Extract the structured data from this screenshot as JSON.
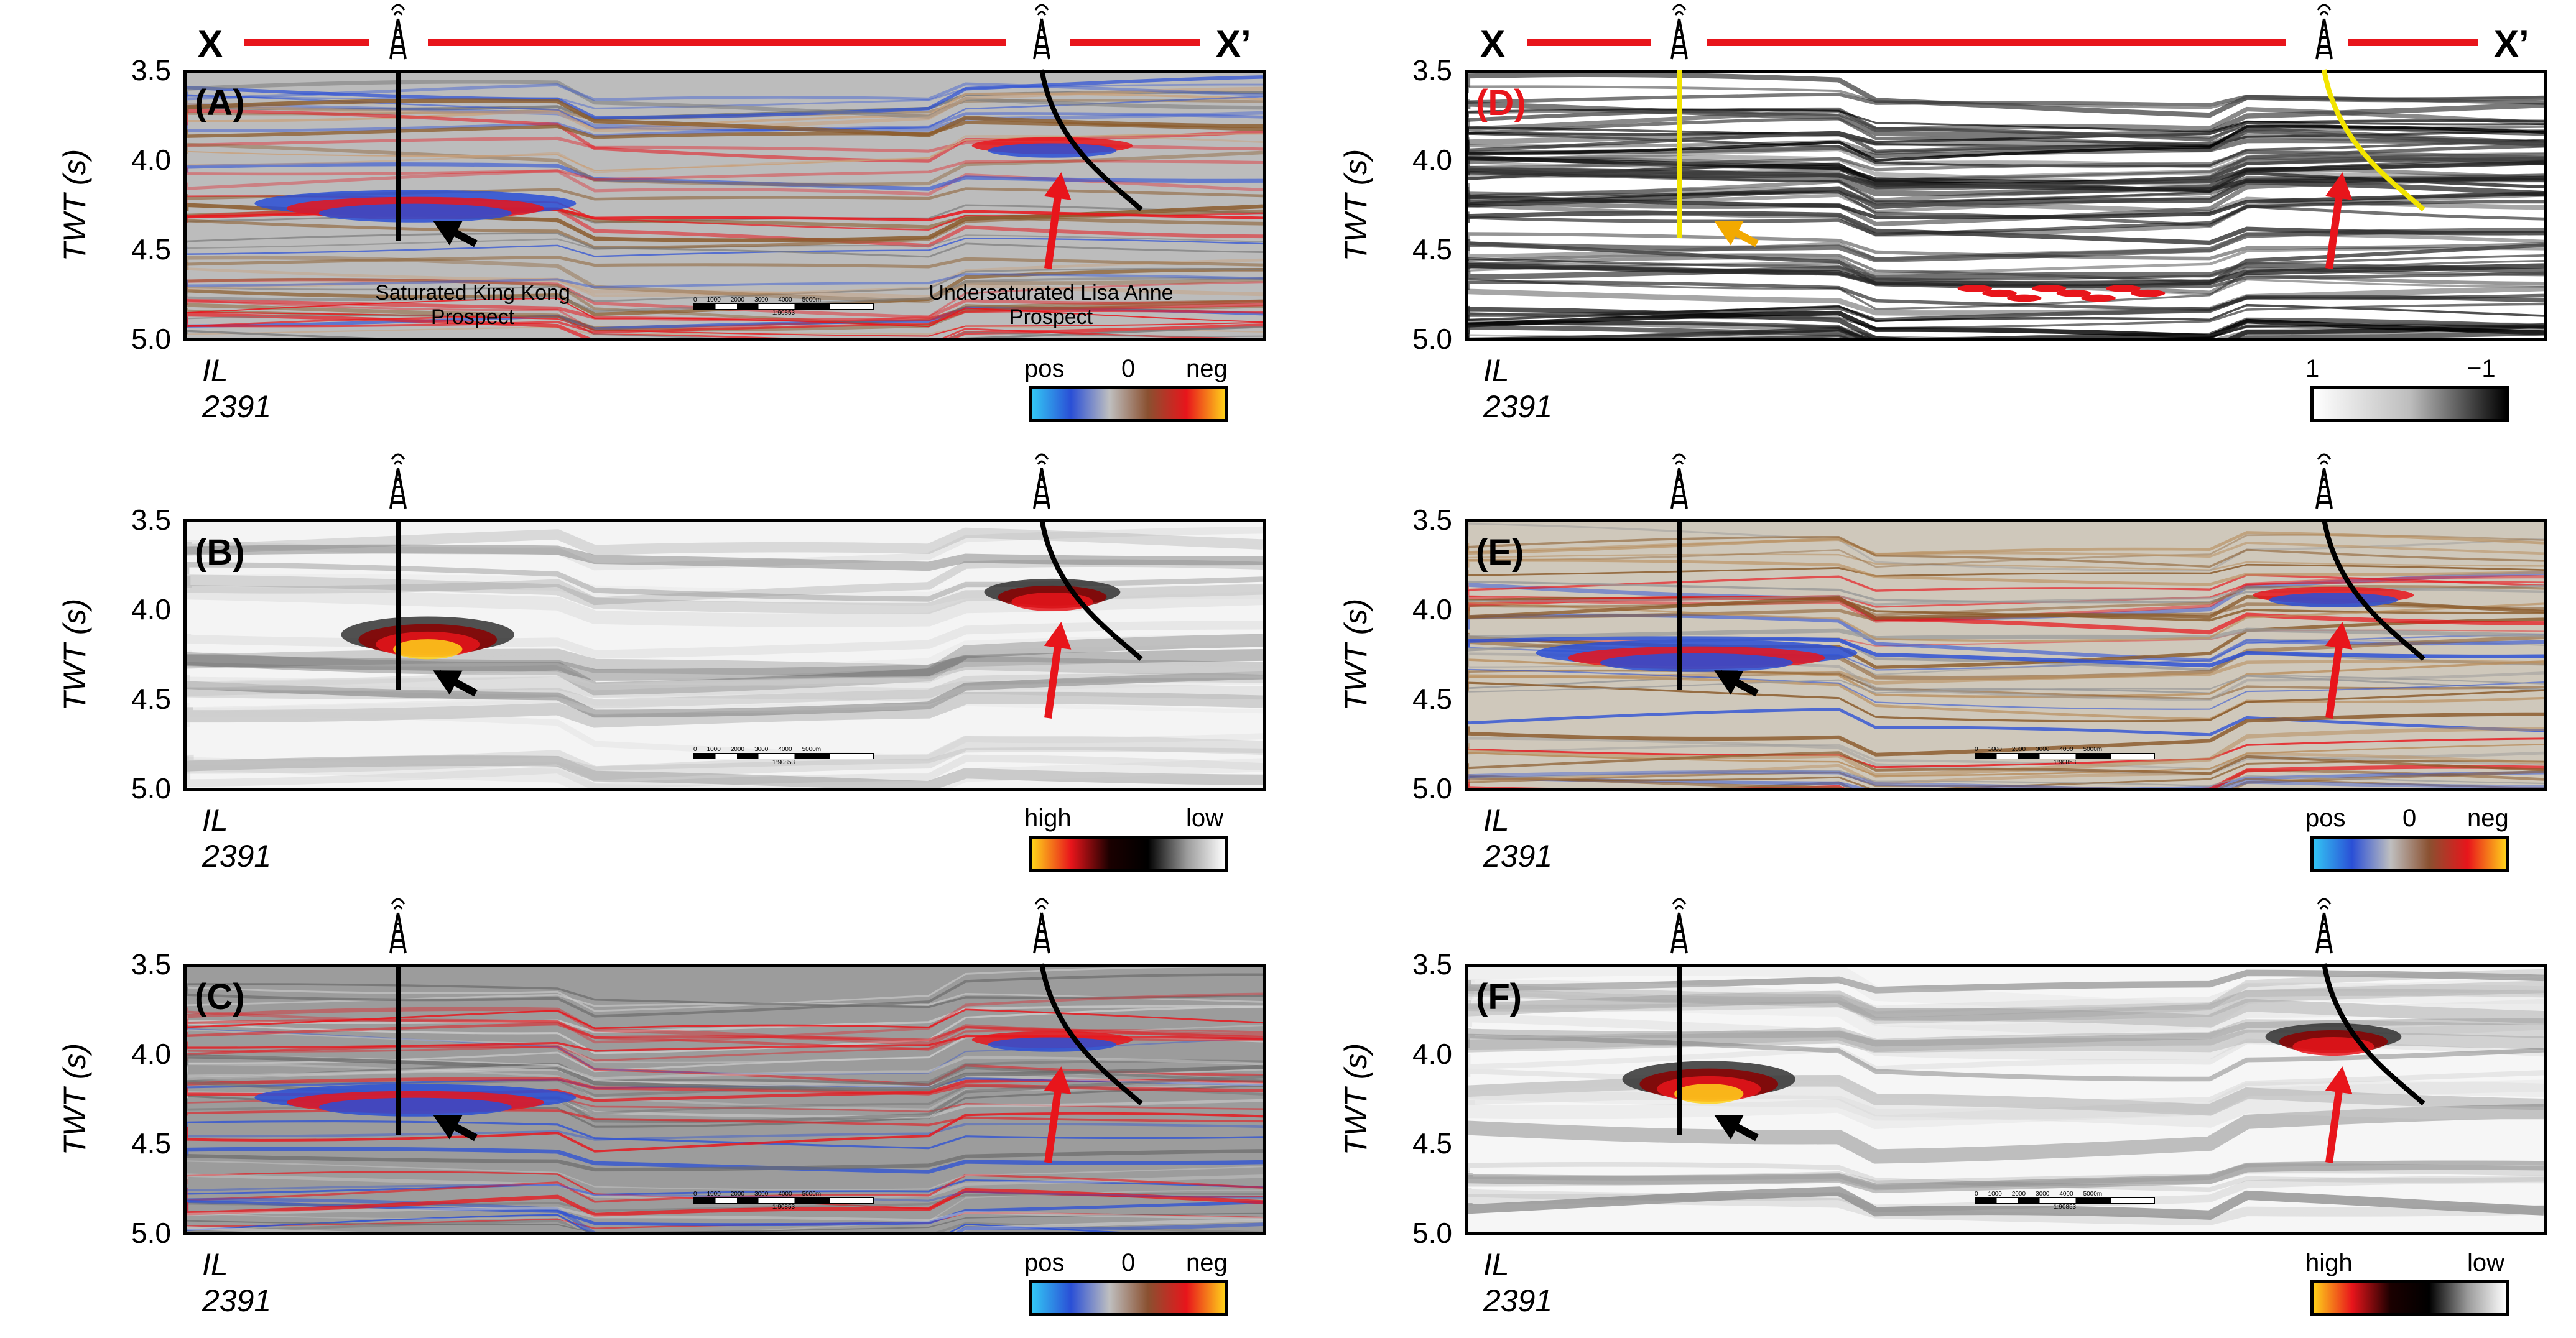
{
  "section_header": {
    "left_label": "X",
    "right_label": "X’"
  },
  "y_axis": {
    "label": "TWT (s)",
    "ticks": [
      "3.5",
      "4.0",
      "4.5",
      "5.0"
    ]
  },
  "panels": [
    {
      "id": "A",
      "label": "(A)",
      "line": "IL 2391",
      "colorbar": {
        "left": "pos",
        "mid": "0",
        "right": "neg",
        "colors": [
          "#33c6f4",
          "#2a4fd6",
          "#bfbfbf",
          "#8a5030",
          "#e8151b",
          "#ffd21a"
        ]
      }
    },
    {
      "id": "B",
      "label": "(B)",
      "line": "IL 2391",
      "colorbar": {
        "left": "high",
        "mid": "",
        "right": "low",
        "colors": [
          "#ffd21a",
          "#e8151b",
          "#1a0000",
          "#000000",
          "#9a9a9a",
          "#ffffff"
        ]
      }
    },
    {
      "id": "C",
      "label": "(C)",
      "line": "IL 2391",
      "colorbar": {
        "left": "pos",
        "mid": "0",
        "right": "neg",
        "colors": [
          "#33c6f4",
          "#2a4fd6",
          "#bfbfbf",
          "#8a5030",
          "#e8151b",
          "#ffd21a"
        ]
      }
    },
    {
      "id": "D",
      "label": "(D)",
      "line": "IL 2391",
      "colorbar": {
        "left": "1",
        "mid": "",
        "right": "−1",
        "colors": [
          "#ffffff",
          "#bdbdbd",
          "#000000"
        ]
      }
    },
    {
      "id": "E",
      "label": "(E)",
      "line": "IL 2391",
      "colorbar": {
        "left": "pos",
        "mid": "0",
        "right": "neg",
        "colors": [
          "#33c6f4",
          "#2a4fd6",
          "#bfbfbf",
          "#8a5030",
          "#e8151b",
          "#ffd21a"
        ]
      }
    },
    {
      "id": "F",
      "label": "(F)",
      "line": "IL 2391",
      "colorbar": {
        "left": "high",
        "mid": "",
        "right": "low",
        "colors": [
          "#ffd21a",
          "#e8151b",
          "#1a0000",
          "#000000",
          "#9a9a9a",
          "#ffffff"
        ]
      }
    }
  ],
  "annotations": {
    "king_kong": "Saturated King Kong\nProspect",
    "lisa_anne": "Undersaturated Lisa Anne\nProspect"
  },
  "scale_bar": {
    "ticks": [
      "0",
      "1000",
      "2000",
      "3000",
      "4000",
      "5000m"
    ],
    "ratio": "1:90853"
  }
}
